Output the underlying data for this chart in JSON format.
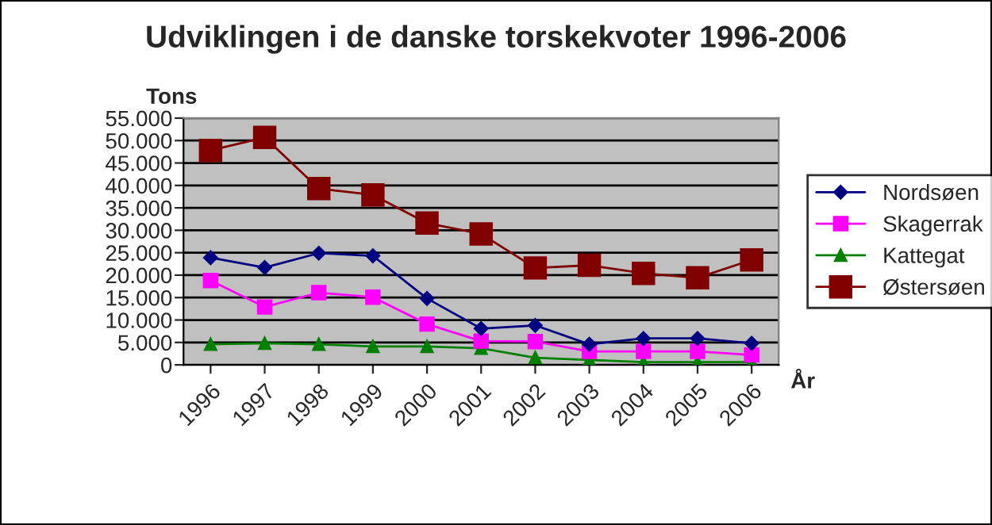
{
  "chart_data": {
    "type": "line",
    "title": "Udviklingen i de danske torskekvoter 1996-2006",
    "xlabel": "År",
    "ylabel": "Tons",
    "categories": [
      "1996",
      "1997",
      "1998",
      "1999",
      "2000",
      "2001",
      "2002",
      "2003",
      "2004",
      "2005",
      "2006"
    ],
    "series": [
      {
        "name": "Nordsøen",
        "color": "#000080",
        "marker": "diamond",
        "values": [
          23900,
          21700,
          24900,
          24300,
          14800,
          8100,
          8800,
          4600,
          5900,
          5900,
          4800
        ]
      },
      {
        "name": "Skagerrak",
        "color": "#ff00ff",
        "marker": "square",
        "values": [
          18800,
          12900,
          16100,
          15100,
          9100,
          5300,
          5200,
          3000,
          3000,
          3000,
          2200
        ]
      },
      {
        "name": "Kattegat",
        "color": "#008000",
        "marker": "triangle",
        "values": [
          4600,
          4800,
          4600,
          4100,
          4100,
          3700,
          1600,
          1100,
          600,
          600,
          600
        ]
      },
      {
        "name": "Østersøen",
        "color": "#800000",
        "marker": "square",
        "values": [
          47800,
          50700,
          39300,
          37900,
          31600,
          29200,
          21600,
          22200,
          20400,
          19400,
          23400
        ]
      }
    ],
    "ylim": [
      0,
      55000
    ],
    "yticks": [
      {
        "value": 0,
        "label": "0"
      },
      {
        "value": 5000,
        "label": "5.000"
      },
      {
        "value": 10000,
        "label": "10.000"
      },
      {
        "value": 15000,
        "label": "15.000"
      },
      {
        "value": 20000,
        "label": "20.000"
      },
      {
        "value": 25000,
        "label": "25.000"
      },
      {
        "value": 30000,
        "label": "30.000"
      },
      {
        "value": 35000,
        "label": "35.000"
      },
      {
        "value": 40000,
        "label": "40.000"
      },
      {
        "value": 45000,
        "label": "45.000"
      },
      {
        "value": 50000,
        "label": "50.000"
      },
      {
        "value": 55000,
        "label": "55.000"
      }
    ],
    "grid": "y",
    "legend": "right",
    "line_style": "solid"
  }
}
